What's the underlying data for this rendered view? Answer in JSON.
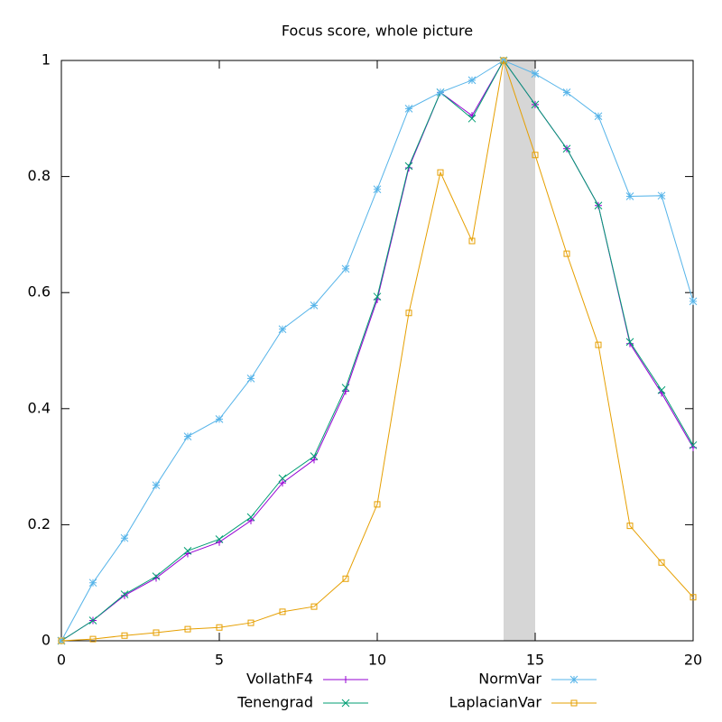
{
  "chart_data": {
    "type": "line",
    "title": "Focus score, whole picture",
    "x": [
      0,
      1,
      2,
      3,
      4,
      5,
      6,
      7,
      8,
      9,
      10,
      11,
      12,
      13,
      14,
      15,
      16,
      17,
      18,
      19,
      20
    ],
    "series": [
      {
        "name": "VollathF4",
        "color": "#9400d3",
        "marker": "plus",
        "values": [
          0,
          0.035,
          0.078,
          0.108,
          0.15,
          0.17,
          0.207,
          0.272,
          0.312,
          0.43,
          0.588,
          0.815,
          0.945,
          0.905,
          1,
          0.924,
          0.848,
          0.75,
          0.512,
          0.427,
          0.333
        ]
      },
      {
        "name": "Tenengrad",
        "color": "#009e73",
        "marker": "cross",
        "values": [
          0,
          0.035,
          0.08,
          0.111,
          0.155,
          0.175,
          0.213,
          0.28,
          0.318,
          0.436,
          0.593,
          0.818,
          0.945,
          0.9,
          1,
          0.924,
          0.848,
          0.75,
          0.515,
          0.432,
          0.337
        ]
      },
      {
        "name": "NormVar",
        "color": "#56b4e9",
        "marker": "star",
        "values": [
          0,
          0.1,
          0.177,
          0.268,
          0.352,
          0.382,
          0.452,
          0.537,
          0.578,
          0.641,
          0.778,
          0.917,
          0.945,
          0.966,
          1,
          0.977,
          0.945,
          0.904,
          0.766,
          0.767,
          0.585
        ]
      },
      {
        "name": "LaplacianVar",
        "color": "#e69f00",
        "marker": "square",
        "values": [
          0,
          0.003,
          0.009,
          0.014,
          0.02,
          0.023,
          0.031,
          0.05,
          0.059,
          0.107,
          0.235,
          0.565,
          0.807,
          0.689,
          1,
          0.837,
          0.667,
          0.51,
          0.198,
          0.135,
          0.075
        ]
      }
    ],
    "shaded_xrange": [
      14,
      15
    ],
    "shade_color": "#d6d6d6",
    "xlim": [
      0,
      20
    ],
    "xticks": [
      0,
      5,
      10,
      15,
      20
    ],
    "ylim": [
      0,
      1
    ],
    "yticks": [
      0,
      0.2,
      0.4,
      0.6,
      0.8,
      1
    ]
  }
}
